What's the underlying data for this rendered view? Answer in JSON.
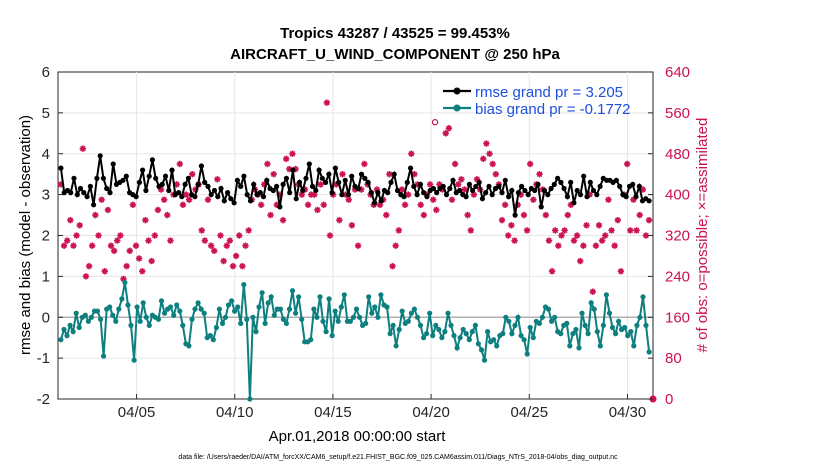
{
  "chart_data": {
    "type": "line",
    "title_line1": "Tropics 43287 / 43525 = 99.453%",
    "title_line2": "AIRCRAFT_U_WIND_COMPONENT @ 250 hPa",
    "xlabel": "Apr.01,2018 00:00:00 start",
    "ylabel_left": "rmse and bias (model - observation)",
    "ylabel_right": "# of obs: o=possible; ×=assimilated",
    "xlim": [
      1,
      31.3
    ],
    "ylim_left": [
      -2,
      6
    ],
    "ylim_right": [
      0,
      640
    ],
    "x_ticks": [
      5,
      10,
      15,
      20,
      25,
      30
    ],
    "x_tick_labels": [
      "04/05",
      "04/10",
      "04/15",
      "04/20",
      "04/25",
      "04/30"
    ],
    "y_ticks_left": [
      -2,
      -1,
      0,
      1,
      2,
      3,
      4,
      5,
      6
    ],
    "y_tick_labels_left": [
      "-2",
      "-1",
      "0",
      "1",
      "2",
      "3",
      "4",
      "5",
      "6"
    ],
    "y_ticks_right": [
      0,
      80,
      160,
      240,
      320,
      400,
      480,
      560,
      640
    ],
    "y_tick_labels_right": [
      "0",
      "80",
      "160",
      "240",
      "320",
      "400",
      "480",
      "560",
      "640"
    ],
    "legend": [
      "rmse grand pr = 3.205",
      "bias grand pr = -0.1772"
    ],
    "footnote": "data file: /Users/raeder/DAI/ATM_forcXX/CAM6_setup/f.e21.FHIST_BGC.f09_025.CAM6assim.011/Diags_NTrS_2018-04/obs_diag_output.nc",
    "colors": {
      "rmse": "#000000",
      "bias": "#0d7f7f",
      "obs": "#cc1155",
      "zero": "#b0b0b0",
      "legend_text": "#1f4fdf"
    },
    "series": [
      {
        "name": "rmse",
        "values": [
          3.65,
          3.05,
          3.1,
          3.05,
          3.4,
          3.0,
          3.15,
          3.05,
          2.95,
          3.2,
          2.75,
          3.4,
          3.95,
          3.4,
          3.15,
          3.05,
          3.75,
          3.25,
          3.3,
          3.35,
          3.45,
          3.05,
          3.0,
          2.95,
          3.3,
          3.6,
          3.1,
          3.45,
          3.85,
          3.4,
          3.2,
          3.25,
          3.45,
          3.1,
          3.6,
          3.0,
          3.05,
          2.95,
          3.25,
          3.4,
          3.0,
          2.95,
          3.25,
          3.7,
          3.3,
          3.2,
          3.0,
          3.1,
          2.95,
          3.15,
          2.85,
          3.05,
          2.9,
          2.8,
          3.35,
          3.2,
          3.45,
          3.0,
          2.85,
          3.25,
          3.0,
          3.05,
          2.95,
          3.35,
          3.15,
          3.1,
          3.2,
          2.7,
          3.25,
          3.4,
          3.05,
          3.6,
          2.9,
          3.3,
          3.1,
          3.4,
          3.75,
          3.2,
          3.1,
          3.6,
          3.4,
          3.3,
          3.5,
          3.05,
          3.65,
          3.3,
          3.0,
          3.35,
          3.0,
          3.45,
          3.2,
          3.15,
          3.5,
          3.4,
          3.3,
          3.05,
          2.8,
          3.05,
          2.85,
          3.1,
          3.05,
          3.3,
          3.5,
          3.1,
          3.0,
          2.95,
          3.3,
          3.65,
          3.2,
          3.0,
          3.25,
          3.05,
          2.95,
          3.1,
          3.15,
          3.05,
          3.15,
          3.2,
          3.0,
          3.15,
          3.35,
          3.05,
          3.1,
          3.0,
          2.95,
          3.25,
          3.1,
          3.2,
          3.3,
          2.9,
          3.05,
          3.2,
          3.0,
          3.15,
          3.2,
          3.05,
          3.35,
          2.95,
          3.1,
          2.5,
          3.05,
          3.2,
          3.1,
          3.0,
          3.15,
          3.1,
          3.25,
          2.7,
          3.1,
          3.0,
          3.15,
          3.25,
          3.4,
          3.3,
          3.15,
          2.95,
          3.3,
          2.8,
          3.1,
          3.0,
          3.45,
          2.95,
          3.3,
          3.1,
          3.0,
          3.2,
          3.4,
          3.35,
          3.35,
          3.3,
          3.35,
          3.2,
          3.0,
          2.95,
          3.2,
          3.25,
          2.95,
          3.2,
          2.85,
          2.9,
          2.85
        ]
      },
      {
        "name": "bias",
        "values": [
          -0.55,
          -0.3,
          -0.45,
          -0.2,
          -0.35,
          0.1,
          -0.25,
          0.0,
          0.05,
          -0.1,
          0.0,
          0.15,
          0.15,
          -0.05,
          -0.95,
          0.2,
          0.25,
          0.05,
          -0.1,
          0.2,
          0.45,
          0.85,
          0.3,
          -0.2,
          -1.05,
          0.25,
          -0.1,
          0.35,
          0.0,
          -0.2,
          0.05,
          0.0,
          -0.05,
          0.4,
          0.1,
          0.2,
          0.25,
          0.05,
          0.3,
          0.15,
          -0.2,
          -0.65,
          -0.7,
          -0.05,
          0.2,
          0.35,
          0.2,
          0.1,
          -0.5,
          -0.45,
          -0.55,
          -0.25,
          0.2,
          -0.15,
          0.0,
          0.3,
          0.4,
          0.15,
          0.25,
          -0.15,
          0.8,
          -0.05,
          -2.0,
          0.0,
          -0.35,
          0.25,
          0.6,
          -0.15,
          0.35,
          0.5,
          0.05,
          0.2,
          0.2,
          -0.05,
          -0.15,
          0.2,
          0.65,
          0.1,
          0.5,
          -0.05,
          -0.6,
          -0.6,
          -0.55,
          0.2,
          0.0,
          0.5,
          -0.1,
          -0.35,
          0.45,
          -0.45,
          0.15,
          -0.1,
          0.25,
          0.55,
          -0.1,
          -0.1,
          0.0,
          0.2,
          0.0,
          -0.2,
          -0.15,
          0.5,
          0.1,
          0.25,
          0.0,
          0.55,
          0.3,
          0.25,
          -0.4,
          -0.2,
          -0.7,
          -0.3,
          0.15,
          -0.15,
          -0.1,
          0.1,
          0.2,
          0.0,
          -0.2,
          -0.5,
          -0.4,
          0.1,
          -0.45,
          -0.2,
          -0.3,
          -0.5,
          -0.35,
          0.1,
          -0.2,
          -0.45,
          -0.75,
          -0.5,
          -0.3,
          -0.4,
          -0.55,
          -0.35,
          -0.2,
          -0.65,
          -0.8,
          -1.05,
          -0.35,
          -0.6,
          -0.55,
          -0.7,
          -0.45,
          -0.4,
          0.0,
          -0.1,
          -0.4,
          -0.2,
          0.0,
          -0.45,
          -0.55,
          -0.9,
          -0.25,
          -0.5,
          -0.1,
          -0.15,
          0.0,
          0.25,
          0.2,
          -0.1,
          0.0,
          -0.35,
          -0.4,
          -0.2,
          -0.15,
          -0.7,
          -0.4,
          -0.3,
          -0.75,
          0.1,
          -0.2,
          -0.4,
          0.35,
          0.2,
          -0.35,
          -0.7,
          -0.2,
          0.55,
          0.1,
          -0.25,
          -0.4,
          -0.1,
          -0.3,
          -0.25,
          -0.45,
          -0.35,
          -0.7,
          -0.2,
          0.0,
          0.5,
          -0.2,
          -0.85
        ]
      },
      {
        "name": "obs_count",
        "values": [
          420,
          300,
          310,
          350,
          300,
          320,
          340,
          490,
          240,
          260,
          300,
          360,
          320,
          390,
          250,
          370,
          300,
          290,
          310,
          320,
          235,
          260,
          290,
          380,
          300,
          275,
          250,
          350,
          310,
          270,
          320,
          370,
          410,
          390,
          360,
          310,
          400,
          420,
          460,
          380,
          400,
          390,
          440,
          410,
          420,
          330,
          310,
          390,
          300,
          290,
          430,
          320,
          270,
          300,
          310,
          260,
          280,
          320,
          260,
          300,
          330,
          390,
          410,
          400,
          380,
          420,
          460,
          360,
          440,
          380,
          400,
          350,
          470,
          450,
          480,
          450,
          420,
          400,
          410,
          380,
          400,
          400,
          370,
          420,
          380,
          580,
          320,
          400,
          420,
          350,
          440,
          400,
          390,
          340,
          410,
          300,
          410,
          460,
          420,
          400,
          380,
          410,
          380,
          390,
          360,
          440,
          260,
          300,
          330,
          410,
          380,
          400,
          480,
          440,
          420,
          380,
          360,
          400,
          420,
          390,
          370,
          420,
          410,
          520,
          530,
          390,
          460,
          420,
          430,
          410,
          360,
          330,
          400,
          430,
          410,
          470,
          500,
          480,
          460,
          440,
          420,
          350,
          380,
          320,
          340,
          310,
          380,
          400,
          360,
          330,
          460,
          390,
          420,
          440,
          410,
          360,
          310,
          250,
          330,
          300,
          320,
          330,
          360,
          380,
          310,
          320,
          270,
          300,
          340,
          400,
          210,
          300,
          340,
          310,
          320,
          390,
          330,
          300,
          350,
          250,
          400,
          460,
          330,
          390,
          330,
          360,
          410,
          320,
          350
        ]
      },
      {
        "name": "obs_extra_possible",
        "values": [
          530,
          530
        ]
      }
    ]
  }
}
